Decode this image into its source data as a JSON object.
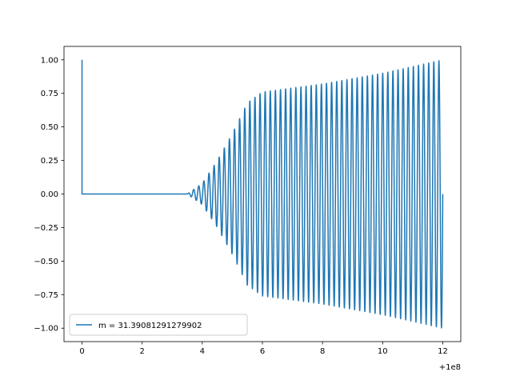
{
  "chart_data": {
    "type": "line",
    "title": "",
    "xlabel": "",
    "ylabel": "",
    "x_offset_label": "+1e8",
    "xlim": [
      -0.6,
      12.6
    ],
    "ylim": [
      -1.1,
      1.1
    ],
    "x_ticks": [
      0,
      2,
      4,
      6,
      8,
      10,
      12
    ],
    "x_tick_labels": [
      "0",
      "2",
      "4",
      "6",
      "8",
      "10",
      "12"
    ],
    "y_ticks": [
      1.0,
      0.75,
      0.5,
      0.25,
      0.0,
      -0.25,
      -0.5,
      -0.75,
      -1.0
    ],
    "y_tick_labels": [
      "1.00",
      "0.75",
      "0.50",
      "0.25",
      "0.00",
      "−0.25",
      "−0.50",
      "−0.75",
      "−1.00"
    ],
    "grid": false,
    "legend_position": "lower-left",
    "series": [
      {
        "name": "m = 31.39081291279902",
        "color": "#1f77b4",
        "description_points": {
          "start_spike": [
            [
              0,
              1.0
            ],
            [
              0,
              0.0
            ]
          ],
          "flat_until": 3.5,
          "oscillation_end": 12.0,
          "envelope": [
            [
              3.5,
              0.0
            ],
            [
              4.0,
              0.08
            ],
            [
              4.5,
              0.25
            ],
            [
              5.0,
              0.45
            ],
            [
              5.5,
              0.68
            ],
            [
              6.0,
              0.76
            ],
            [
              7.0,
              0.79
            ],
            [
              8.0,
              0.82
            ],
            [
              9.0,
              0.86
            ],
            [
              10.0,
              0.9
            ],
            [
              11.0,
              0.95
            ],
            [
              12.0,
              1.0
            ]
          ],
          "period": 0.17
        }
      }
    ]
  }
}
